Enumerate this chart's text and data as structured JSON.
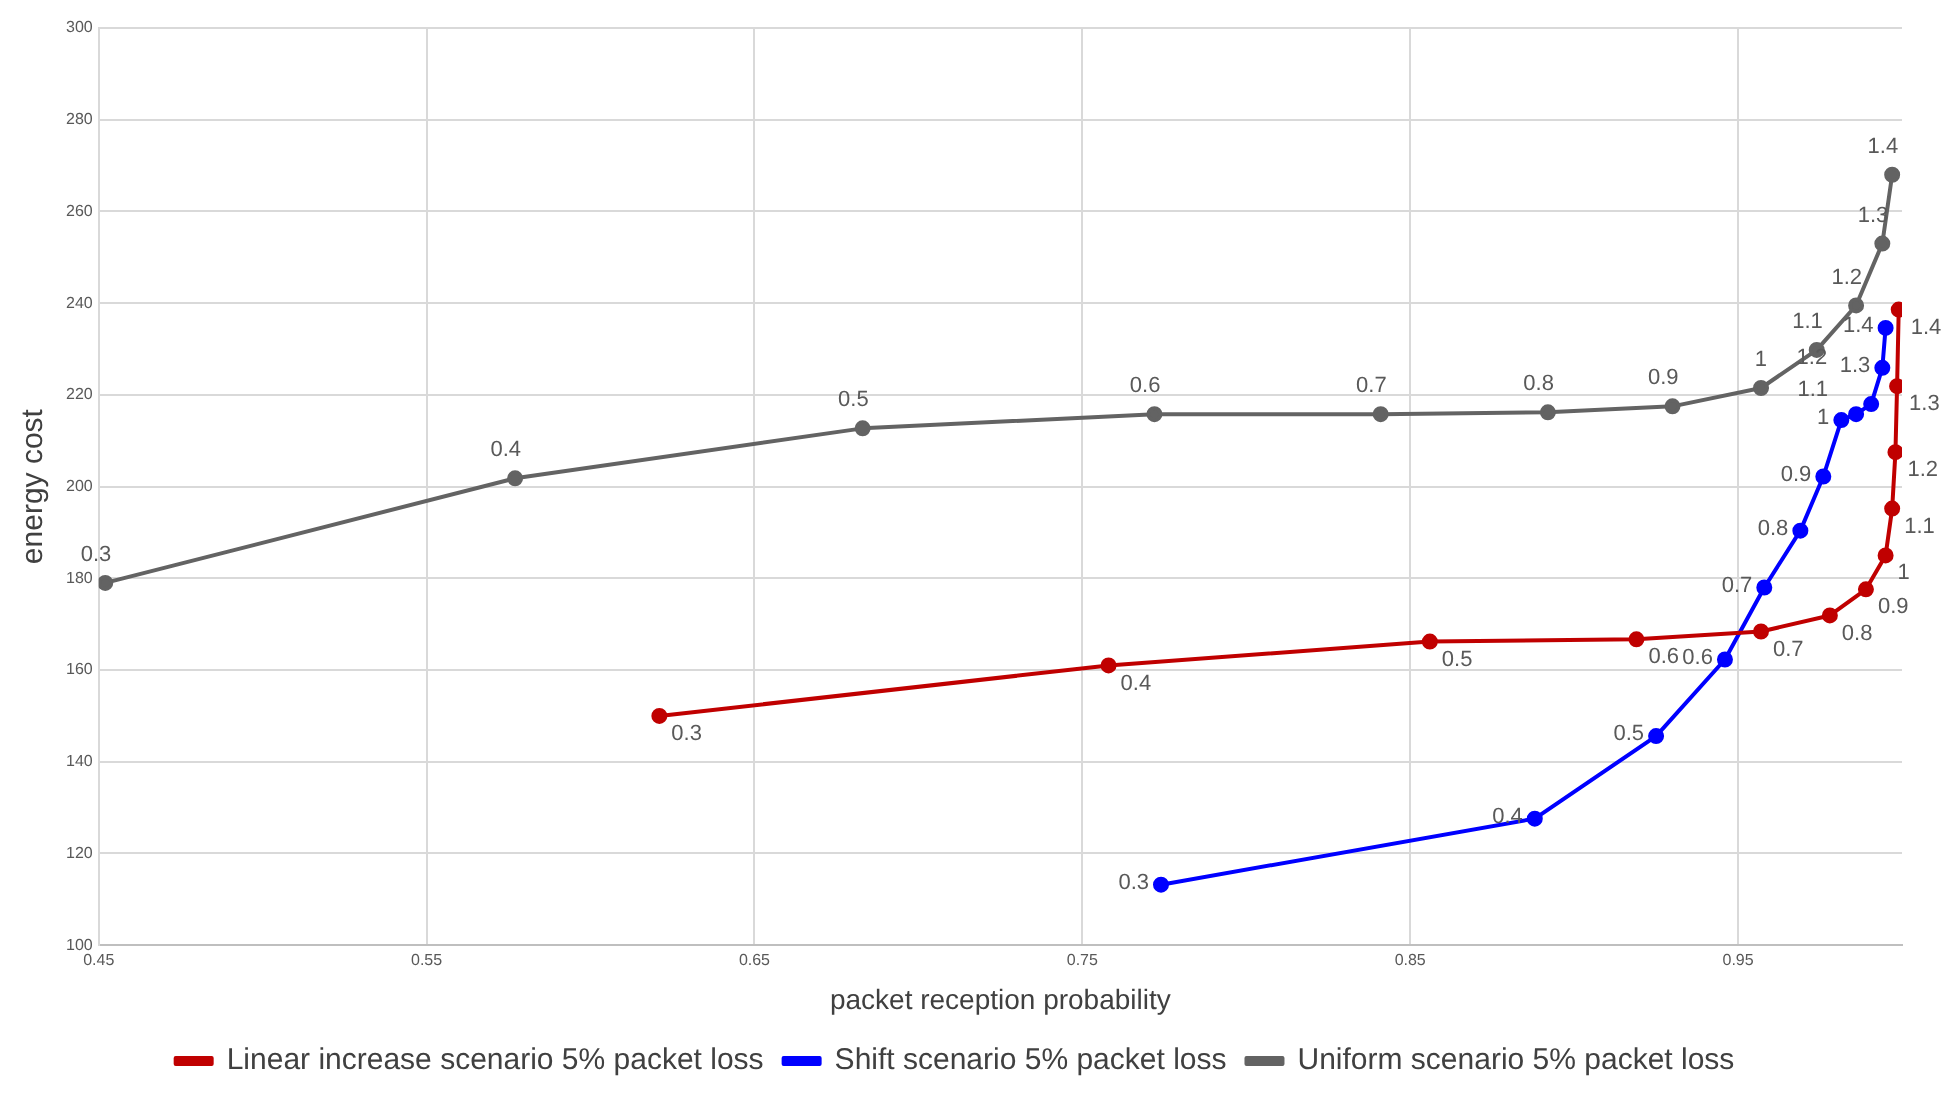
{
  "chart_data": {
    "type": "line",
    "xlabel": "packet reception probability",
    "ylabel": "energy cost",
    "xlim": [
      0.45,
      1.0
    ],
    "xticks": [
      0.45,
      0.55,
      0.65,
      0.75,
      0.85,
      0.95
    ],
    "ylim": [
      100,
      300
    ],
    "yticks": [
      100,
      120,
      140,
      160,
      180,
      200,
      220,
      240,
      260,
      280,
      300
    ],
    "grid": true,
    "legend": "bottom",
    "marker": "circle",
    "line_style": "solid",
    "series": [
      {
        "name": "Linear increase scenario 5% packet loss",
        "color": "#c00000",
        "x": [
          0.621,
          0.758,
          0.856,
          0.919,
          0.957,
          0.978,
          0.989,
          0.995,
          0.997,
          0.998,
          0.9985,
          0.999
        ],
        "values": [
          150,
          161,
          166.2,
          166.7,
          168.4,
          171.9,
          177.6,
          185,
          195.2,
          207.5,
          221.9,
          238.6
        ]
      },
      {
        "name": "Shift scenario 5% packet loss",
        "color": "#0000ff",
        "x": [
          0.774,
          0.888,
          0.925,
          0.946,
          0.958,
          0.969,
          0.976,
          0.9815,
          0.986,
          0.9906,
          0.994,
          0.995
        ],
        "values": [
          113.2,
          127.6,
          145.6,
          162.3,
          178,
          190.4,
          202.2,
          214.5,
          215.8,
          218,
          225.9,
          234.6
        ]
      },
      {
        "name": "Uniform scenario 5% packet loss",
        "color": "#636363",
        "x": [
          0.452,
          0.577,
          0.683,
          0.772,
          0.841,
          0.892,
          0.93,
          0.957,
          0.974,
          0.986,
          0.994,
          0.997
        ],
        "values": [
          179,
          201.8,
          212.7,
          215.8,
          215.8,
          216.2,
          217.5,
          221.5,
          229.8,
          239.5,
          253,
          268
        ]
      }
    ],
    "annotations": [
      {
        "text": "0.3",
        "x": 0.621,
        "y": 150
      },
      {
        "text": "0.4",
        "x": 0.758,
        "y": 161
      },
      {
        "text": "0.5",
        "x": 0.856,
        "y": 166.2
      },
      {
        "text": "0.6",
        "x": 0.919,
        "y": 166.7
      },
      {
        "text": "0.7",
        "x": 0.957,
        "y": 168.4
      },
      {
        "text": "0.8",
        "x": 0.978,
        "y": 171.9
      },
      {
        "text": "0.9",
        "x": 0.989,
        "y": 177.6
      },
      {
        "text": "1",
        "x": 0.995,
        "y": 185
      },
      {
        "text": "1.1",
        "x": 0.997,
        "y": 195.2
      },
      {
        "text": "1.2",
        "x": 0.998,
        "y": 207.5
      },
      {
        "text": "1.3",
        "x": 0.9985,
        "y": 221.9
      },
      {
        "text": "1.4",
        "x": 0.999,
        "y": 238.6
      },
      {
        "text": "0.3",
        "x": 0.774,
        "y": 113.2
      },
      {
        "text": "0.4",
        "x": 0.888,
        "y": 127.6
      },
      {
        "text": "0.5",
        "x": 0.925,
        "y": 145.6
      },
      {
        "text": "0.6",
        "x": 0.946,
        "y": 162.3
      },
      {
        "text": "0.7",
        "x": 0.958,
        "y": 178
      },
      {
        "text": "0.8",
        "x": 0.969,
        "y": 190.4
      },
      {
        "text": "0.9",
        "x": 0.976,
        "y": 202.2
      },
      {
        "text": "1",
        "x": 0.9815,
        "y": 214.5
      },
      {
        "text": "1.1",
        "x": 0.986,
        "y": 215.8
      },
      {
        "text": "1.2",
        "x": 0.9906,
        "y": 218
      },
      {
        "text": "1.3",
        "x": 0.994,
        "y": 225.9
      },
      {
        "text": "1.4",
        "x": 0.995,
        "y": 234.6
      },
      {
        "text": "0.3",
        "x": 0.452,
        "y": 179
      },
      {
        "text": "0.4",
        "x": 0.577,
        "y": 201.8
      },
      {
        "text": "0.5",
        "x": 0.683,
        "y": 212.7
      },
      {
        "text": "0.6",
        "x": 0.772,
        "y": 215.8
      },
      {
        "text": "0.7",
        "x": 0.841,
        "y": 215.8
      },
      {
        "text": "0.8",
        "x": 0.892,
        "y": 216.2
      },
      {
        "text": "0.9",
        "x": 0.93,
        "y": 217.5
      },
      {
        "text": "1",
        "x": 0.957,
        "y": 221.5
      },
      {
        "text": "1.1",
        "x": 0.974,
        "y": 229.8
      },
      {
        "text": "1.2",
        "x": 0.986,
        "y": 239.5
      },
      {
        "text": "1.3",
        "x": 0.994,
        "y": 253
      },
      {
        "text": "1.4",
        "x": 0.997,
        "y": 268
      }
    ]
  }
}
